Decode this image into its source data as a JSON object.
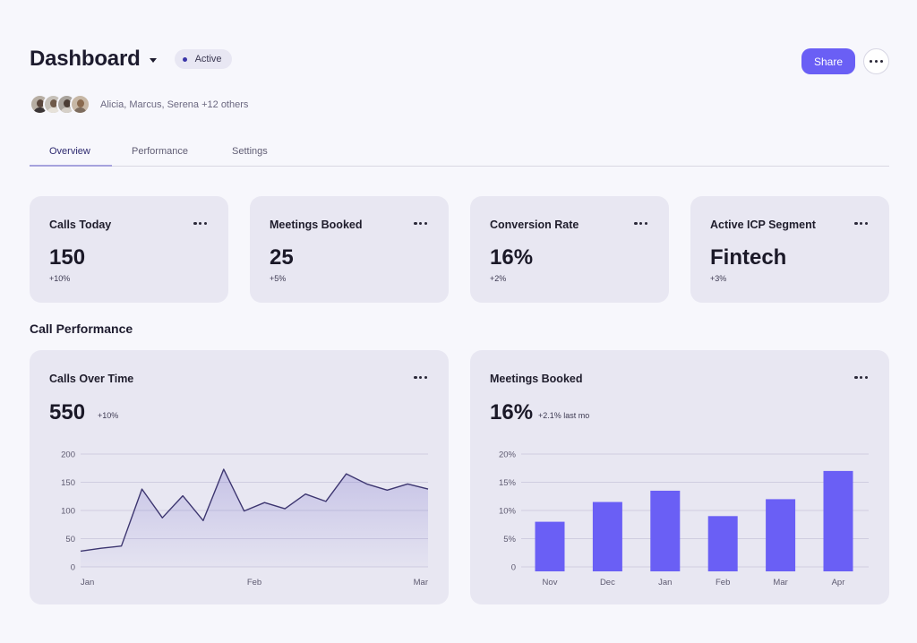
{
  "header": {
    "title": "Dashboard",
    "status": "Active",
    "share_label": "Share"
  },
  "collaborators": {
    "text": "Alicia, Marcus, Serena +12 others",
    "avatars": [
      "avatar-alicia",
      "avatar-marcus",
      "avatar-serena",
      "avatar-other"
    ]
  },
  "tabs": [
    "Overview",
    "Performance",
    "Settings"
  ],
  "stats": [
    {
      "title": "Calls Today",
      "value": "150",
      "change": "+10%"
    },
    {
      "title": "Meetings Booked",
      "value": "25",
      "change": "+5%"
    },
    {
      "title": "Conversion Rate",
      "value": "16%",
      "change": "+2%"
    },
    {
      "title": "Active ICP Segment",
      "value": "Fintech",
      "change": "+3%"
    }
  ],
  "section_title": "Call Performance",
  "calls_chart": {
    "title": "Calls Over Time",
    "value": "550",
    "change": "+10%"
  },
  "meetings_chart": {
    "title": "Meetings Booked",
    "value": "16%",
    "change": "+2.1% last mo"
  },
  "colors": {
    "accent": "#6a5ff5",
    "line": "#3d3670",
    "card": "#e8e7f2",
    "background": "#f7f7fc"
  },
  "chart_data": [
    {
      "type": "area",
      "title": "Calls Over Time",
      "x_ticks": [
        "Jan",
        "Feb",
        "Mar"
      ],
      "y_ticks": [
        0,
        50,
        100,
        150,
        200
      ],
      "ylim": [
        0,
        200
      ],
      "grid": true,
      "values": [
        28,
        33,
        37,
        138,
        87,
        126,
        82,
        173,
        99,
        114,
        103,
        129,
        116,
        165,
        147,
        136,
        147,
        138
      ]
    },
    {
      "type": "bar",
      "title": "Meetings Booked",
      "categories": [
        "Nov",
        "Dec",
        "Jan",
        "Feb",
        "Mar",
        "Apr"
      ],
      "values": [
        8,
        11.5,
        13.5,
        9,
        12,
        17
      ],
      "y_ticks": [
        "0",
        "5%",
        "10%",
        "15%",
        "20%"
      ],
      "ylim": [
        0,
        20
      ],
      "unit": "%",
      "grid": true
    }
  ]
}
